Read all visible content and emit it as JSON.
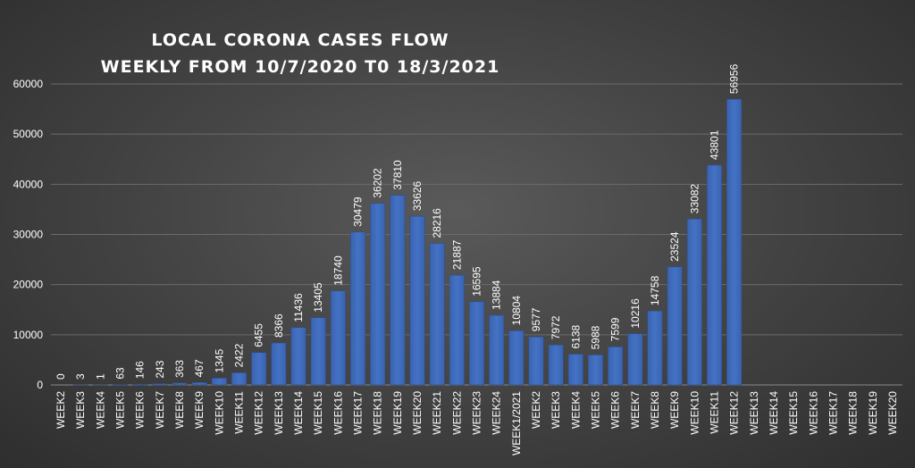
{
  "chart_data": {
    "type": "bar",
    "title_lines": [
      "LOCAL CORONA CASES FLOW",
      "WEEKLY FROM 10/7/2020 T0 18/3/2021"
    ],
    "xlabel": "",
    "ylabel": "",
    "ylim": [
      0,
      60000
    ],
    "yticks": [
      "0",
      "10000",
      "20000",
      "30000",
      "40000",
      "50000",
      "60000"
    ],
    "grid": true,
    "legend": "none",
    "bar_color": "#4472c4",
    "categories": [
      "WEEK2",
      "WEEK3",
      "WEEK4",
      "WEEK5",
      "WEEK6",
      "WEEK7",
      "WEEK8",
      "WEEK9",
      "WEEK10",
      "WEEK11",
      "WEEK12",
      "WEEK13",
      "WEEK14",
      "WEEK15",
      "WEEK16",
      "WEEK17",
      "WEEK18",
      "WEEK19",
      "WEEK20",
      "WEEK21",
      "WEEK22",
      "WEEK23",
      "WEEK24",
      "WEEK1/2021",
      "WEEK2",
      "WEEK3",
      "WEEK4",
      "WEEK5",
      "WEEK6",
      "WEEK7",
      "WEEK8",
      "WEEK9",
      "WEEK10",
      "WEEK11",
      "WEEK12",
      "WEEK13",
      "WEEK14",
      "WEEK15",
      "WEEK16",
      "WEEK17",
      "WEEK18",
      "WEEK19",
      "WEEK20"
    ],
    "values": [
      0,
      3,
      1,
      63,
      146,
      243,
      363,
      467,
      1345,
      2422,
      6455,
      8366,
      11436,
      13405,
      18740,
      30479,
      36202,
      37810,
      33626,
      28216,
      21887,
      16595,
      13884,
      10804,
      9577,
      7972,
      6138,
      5988,
      7599,
      10216,
      14758,
      23524,
      33082,
      43801,
      56956,
      null,
      null,
      null,
      null,
      null,
      null,
      null,
      null
    ]
  }
}
